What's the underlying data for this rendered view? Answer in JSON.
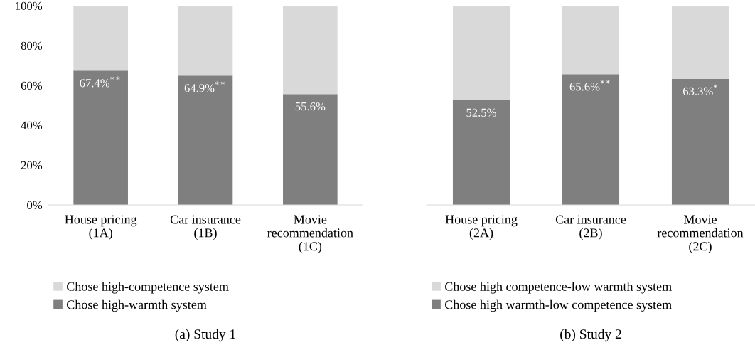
{
  "chart_data": [
    {
      "type": "bar",
      "stacked": true,
      "title": "(a) Study 1",
      "categories": [
        "House pricing\n(1A)",
        "Car insurance\n(1B)",
        "Movie\nrecommendation\n(1C)"
      ],
      "series": [
        {
          "name": "Chose high-warmth system",
          "color": "#7f7f7f",
          "values": [
            67.4,
            64.9,
            55.6
          ],
          "value_labels": [
            "67.4%$^{**}$",
            "64.9%$^{**}$",
            "55.6%"
          ]
        },
        {
          "name": "Chose high-competence system",
          "color": "#d9d9d9",
          "values": [
            32.6,
            35.1,
            44.4
          ]
        }
      ],
      "ylim": [
        0,
        100
      ],
      "yticks": [
        {
          "value": 0,
          "label": "0%"
        },
        {
          "value": 20,
          "label": "20%"
        },
        {
          "value": 40,
          "label": "40%"
        },
        {
          "value": 60,
          "label": "60%"
        },
        {
          "value": 80,
          "label": "80%"
        },
        {
          "value": 100,
          "label": "100%"
        }
      ],
      "legend": "bottom"
    },
    {
      "type": "bar",
      "stacked": true,
      "title": "(b) Study 2",
      "categories": [
        "House pricing\n(2A)",
        "Car insurance\n(2B)",
        "Movie\nrecommendation\n(2C)"
      ],
      "series": [
        {
          "name": "Chose high warmth-low competence system",
          "color": "#7f7f7f",
          "values": [
            52.5,
            65.6,
            63.3
          ],
          "value_labels": [
            "52.5%",
            "65.6%$^{**}$",
            "63.3%$^{*}$"
          ]
        },
        {
          "name": "Chose high competence-low warmth system",
          "color": "#d9d9d9",
          "values": [
            47.5,
            34.4,
            36.7
          ]
        }
      ],
      "ylim": [
        0,
        100
      ],
      "tick_labels": "x",
      "legend": "bottom"
    }
  ]
}
